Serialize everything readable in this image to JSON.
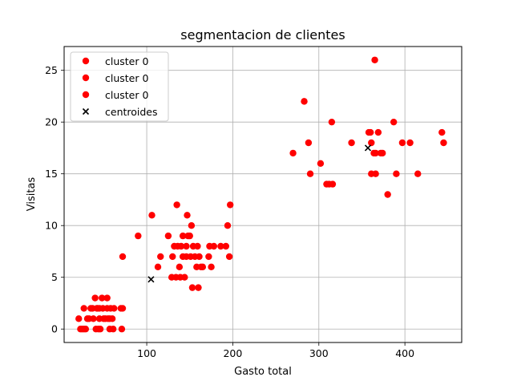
{
  "chart_data": {
    "type": "scatter",
    "title": "segmentacion de clientes",
    "xlabel": "Gasto total",
    "ylabel": "Visitas",
    "xlim": [
      4,
      466
    ],
    "ylim": [
      -1.3,
      27.3
    ],
    "xticks": [
      100,
      200,
      300,
      400
    ],
    "yticks": [
      0,
      5,
      10,
      15,
      20,
      25
    ],
    "grid": true,
    "legend_position": "top-left",
    "series": [
      {
        "name": "cluster 0",
        "marker": "circle",
        "color": "#ff0000",
        "points": [
          [
            21,
            1
          ],
          [
            23,
            0
          ],
          [
            25,
            0
          ],
          [
            27,
            0
          ],
          [
            27,
            2
          ],
          [
            29,
            0
          ],
          [
            31,
            1
          ],
          [
            33,
            1
          ],
          [
            35,
            2
          ],
          [
            37,
            2
          ],
          [
            38,
            1
          ],
          [
            40,
            3
          ],
          [
            41,
            0
          ],
          [
            42,
            2
          ],
          [
            43,
            2
          ],
          [
            44,
            0
          ],
          [
            45,
            1
          ],
          [
            45,
            2
          ],
          [
            46,
            0
          ],
          [
            48,
            3
          ],
          [
            49,
            2
          ],
          [
            50,
            1
          ],
          [
            52,
            1
          ],
          [
            54,
            2
          ],
          [
            54,
            3
          ],
          [
            55,
            1
          ],
          [
            57,
            0
          ],
          [
            57,
            1
          ],
          [
            58,
            2
          ],
          [
            60,
            1
          ],
          [
            61,
            0
          ],
          [
            62,
            2
          ],
          [
            70,
            2
          ],
          [
            71,
            0
          ],
          [
            72,
            7
          ],
          [
            72,
            2
          ],
          [
            90,
            9
          ],
          [
            106,
            11
          ],
          [
            113,
            6
          ],
          [
            116,
            7
          ],
          [
            125,
            9
          ],
          [
            129,
            5
          ],
          [
            130,
            7
          ],
          [
            132,
            8
          ],
          [
            134,
            5
          ],
          [
            135,
            12
          ],
          [
            136,
            8
          ],
          [
            138,
            6
          ],
          [
            139,
            5
          ],
          [
            140,
            8
          ],
          [
            142,
            7
          ],
          [
            142,
            9
          ],
          [
            144,
            5
          ],
          [
            146,
            8
          ],
          [
            146,
            7
          ],
          [
            147,
            11
          ],
          [
            148,
            9
          ],
          [
            150,
            9
          ],
          [
            151,
            7
          ],
          [
            152,
            10
          ],
          [
            153,
            4
          ],
          [
            154,
            8
          ],
          [
            156,
            7
          ],
          [
            158,
            6
          ],
          [
            159,
            8
          ],
          [
            160,
            4
          ],
          [
            161,
            7
          ],
          [
            163,
            6
          ],
          [
            165,
            6
          ],
          [
            172,
            7
          ],
          [
            173,
            8
          ],
          [
            175,
            6
          ],
          [
            178,
            8
          ],
          [
            186,
            8
          ],
          [
            192,
            8
          ],
          [
            194,
            10
          ],
          [
            196,
            7
          ],
          [
            197,
            12
          ]
        ]
      },
      {
        "name": "cluster 0",
        "marker": "circle",
        "color": "#ff0000",
        "points": [
          [
            270,
            17
          ],
          [
            283,
            22
          ],
          [
            288,
            18
          ],
          [
            290,
            15
          ],
          [
            302,
            16
          ],
          [
            309,
            14
          ],
          [
            312,
            14
          ],
          [
            315,
            20
          ],
          [
            316,
            14
          ],
          [
            338,
            18
          ],
          [
            358,
            19
          ],
          [
            360,
            19
          ],
          [
            361,
            15
          ],
          [
            361,
            18
          ],
          [
            364,
            17
          ],
          [
            365,
            26
          ],
          [
            366,
            15
          ],
          [
            366,
            17
          ],
          [
            369,
            19
          ],
          [
            372,
            17
          ],
          [
            374,
            17
          ],
          [
            380,
            13
          ],
          [
            387,
            20
          ],
          [
            390,
            15
          ],
          [
            397,
            18
          ],
          [
            406,
            18
          ],
          [
            415,
            15
          ],
          [
            443,
            19
          ],
          [
            445,
            18
          ]
        ]
      },
      {
        "name": "cluster 0",
        "marker": "circle",
        "color": "#ff0000",
        "points": []
      },
      {
        "name": "centroides",
        "marker": "x",
        "color": "#000000",
        "points": [
          [
            105,
            4.8
          ],
          [
            357,
            17.5
          ]
        ]
      }
    ]
  }
}
